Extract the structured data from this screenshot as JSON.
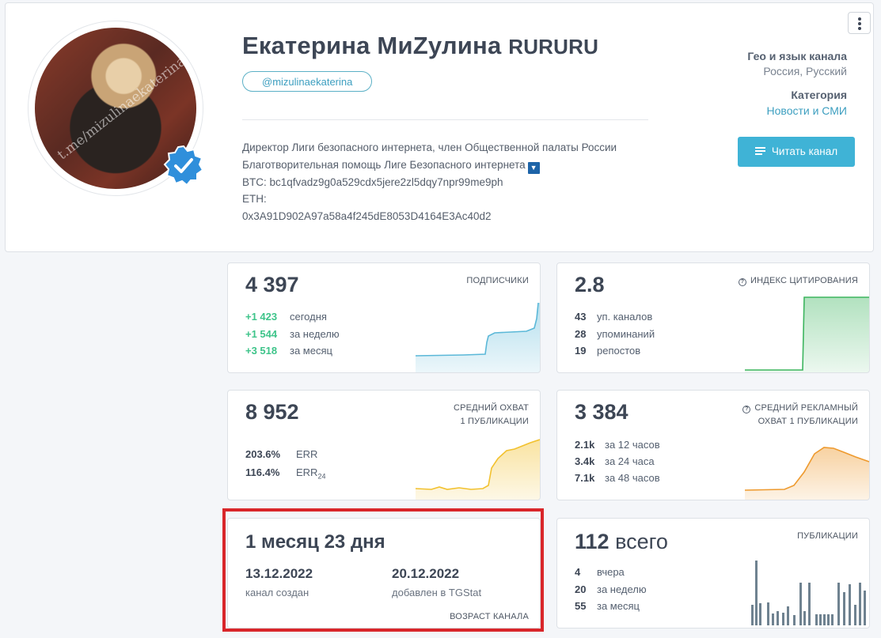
{
  "channel": {
    "name": "Екатерина МиZулина",
    "name_suffix": "RURURU",
    "username": "@mizulinaekaterina",
    "avatar_watermark": "t.me/mizulinaekaterina",
    "description": [
      "Директор Лиги безопасного интернета, член Общественной палаты России",
      "Благотворительная помощь Лиге Безопасного интернета",
      "BTC: bc1qfvadz9g0a529cdx5jere2zl5dqy7npr99me9ph",
      "ETH:",
      "0x3A91D902A97a58a4f245dE8053D4164E3Ac40d2"
    ],
    "geo_label": "Гео и язык канала",
    "geo_value": "Россия, Русский",
    "category_label": "Категория",
    "category_value": "Новости и СМИ",
    "read_button": "Читать канал",
    "accent_color": "#3fb3d6"
  },
  "stats": {
    "subscribers": {
      "value": "4 397",
      "label": "ПОДПИСЧИКИ",
      "rows": [
        {
          "value": "+1 423",
          "label": "сегодня"
        },
        {
          "value": "+1 544",
          "label": "за неделю"
        },
        {
          "value": "+3 518",
          "label": "за месяц"
        }
      ],
      "color": "#5bb8d8"
    },
    "citation": {
      "value": "2.8",
      "label": "ИНДЕКС ЦИТИРОВАНИЯ",
      "rows": [
        {
          "value": "43",
          "label": "уп. каналов"
        },
        {
          "value": "28",
          "label": "упоминаний"
        },
        {
          "value": "19",
          "label": "репостов"
        }
      ],
      "color": "#3db55f"
    },
    "reach": {
      "value": "8 952",
      "label_line1": "СРЕДНИЙ ОХВАТ",
      "label_line2": "1 ПУБЛИКАЦИИ",
      "rows": [
        {
          "value": "203.6%",
          "label": "ERR",
          "sub": ""
        },
        {
          "value": "116.4%",
          "label": "ERR",
          "sub": "24"
        }
      ],
      "color": "#f2c12e"
    },
    "ad_reach": {
      "value": "3 384",
      "label_line1": "СРЕДНИЙ РЕКЛАМНЫЙ",
      "label_line2": "ОХВАТ 1 ПУБЛИКАЦИИ",
      "rows": [
        {
          "value": "2.1k",
          "label": "за 12 часов"
        },
        {
          "value": "3.4k",
          "label": "за 24 часа"
        },
        {
          "value": "7.1k",
          "label": "за 48 часов"
        }
      ],
      "color": "#ee9a2e"
    },
    "age": {
      "value": "1 месяц 23 дня",
      "label": "ВОЗРАСТ КАНАЛА",
      "created_date": "13.12.2022",
      "created_label": "канал создан",
      "added_date": "20.12.2022",
      "added_label": "добавлен в TGStat"
    },
    "posts": {
      "value": "112",
      "value_unit": "всего",
      "label": "ПУБЛИКАЦИИ",
      "rows": [
        {
          "value": "4",
          "label": "вчера"
        },
        {
          "value": "20",
          "label": "за неделю"
        },
        {
          "value": "55",
          "label": "за месяц"
        }
      ],
      "color": "#6f8290"
    }
  }
}
